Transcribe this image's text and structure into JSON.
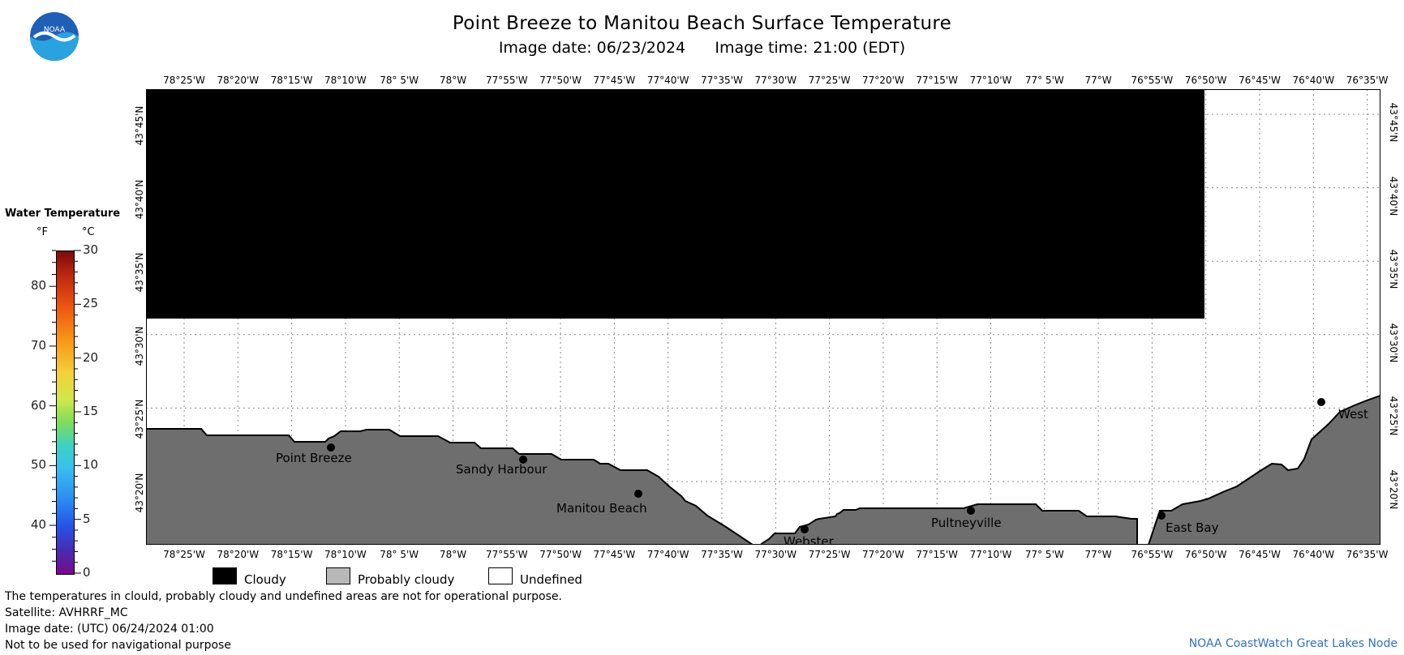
{
  "header": {
    "title": "Point Breeze to Manitou Beach Surface Temperature",
    "image_date_label": "Image date: 06/23/2024",
    "image_time_label": "Image time: 21:00 (EDT)"
  },
  "logo": {
    "text": "NOAA"
  },
  "map": {
    "lon_ticks": [
      "78°25'W",
      "78°20'W",
      "78°15'W",
      "78°10'W",
      "78° 5'W",
      "78°W",
      "77°55'W",
      "77°50'W",
      "77°45'W",
      "77°40'W",
      "77°35'W",
      "77°30'W",
      "77°25'W",
      "77°20'W",
      "77°15'W",
      "77°10'W",
      "77° 5'W",
      "77°W",
      "76°55'W",
      "76°50'W",
      "76°45'W",
      "76°40'W",
      "76°35'W"
    ],
    "lat_ticks": [
      "43°45'N",
      "43°40'N",
      "43°35'N",
      "43°30'N",
      "43°25'N",
      "43°20'N"
    ],
    "places": [
      {
        "name": "Point Breeze"
      },
      {
        "name": "Sandy Harbour"
      },
      {
        "name": "Manitou Beach"
      },
      {
        "name": "Webster"
      },
      {
        "name": "Pultneyville"
      },
      {
        "name": "East Bay"
      },
      {
        "name": "West"
      }
    ],
    "colors": {
      "cloudy": "#000000",
      "land": "#6e6e6e",
      "undefined": "#ffffff",
      "grid": "#8a8a8a"
    }
  },
  "scale": {
    "title": "Water Temperature",
    "unit_f": "°F",
    "unit_c": "°C",
    "f_labels": [
      "80",
      "70",
      "60",
      "50",
      "40"
    ],
    "c_labels": [
      "30",
      "25",
      "20",
      "15",
      "10",
      "5",
      "0"
    ]
  },
  "legend": {
    "cloudy": "Cloudy",
    "probably_cloudy": "Probably cloudy",
    "undefined": "Undefined"
  },
  "notes": {
    "line1": "The temperatures in clould, probably cloudy and undefined areas are not for operational purpose.",
    "line2": "Satellite: AVHRRF_MC",
    "line3": "Image date: (UTC) 06/24/2024  01:00",
    "line4": "Not to be used for navigational purpose"
  },
  "credit": "NOAA CoastWatch Great Lakes Node"
}
